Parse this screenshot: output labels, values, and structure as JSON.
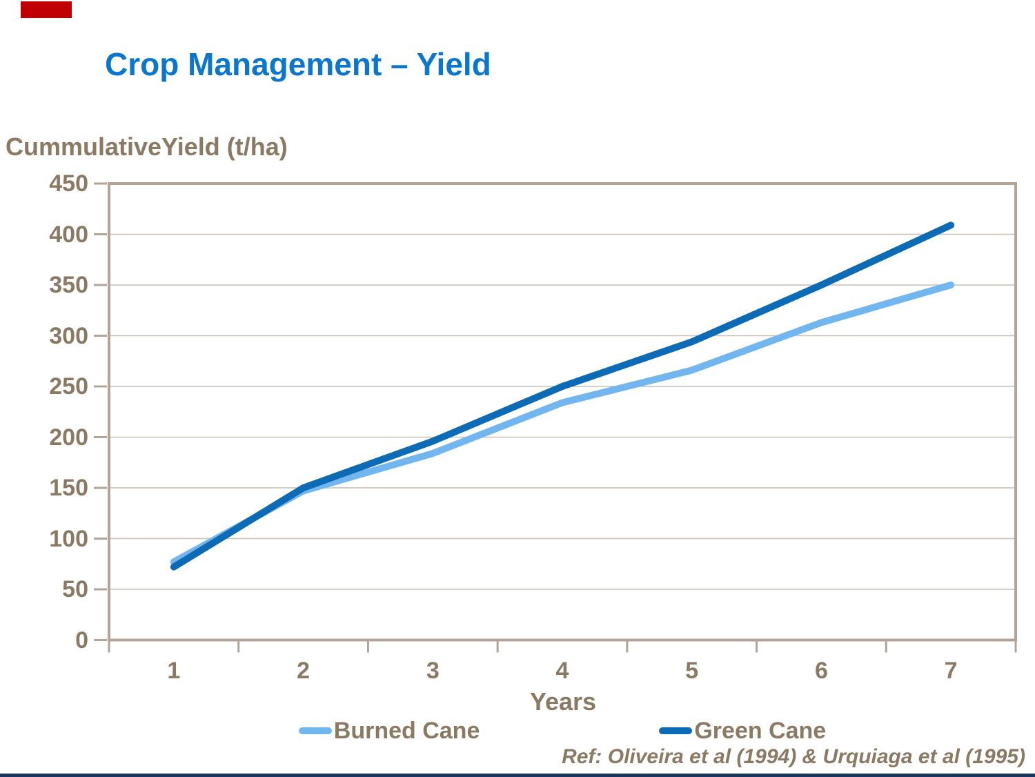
{
  "slide": {
    "title": "Crop Management – Yield",
    "ref_text": "Ref: Oliveira et al (1994) & Urquiaga et al (1995)",
    "accent_bar_color": "#C00000",
    "footer_bar_color": "#16365C"
  },
  "colors": {
    "title_blue": "#0B76CC",
    "axis_text_brown": "#8A7963",
    "plot_border": "#B2A597",
    "gridline": "#C9BFB2"
  },
  "chart_data": {
    "type": "line",
    "title": "",
    "y_axis_title": "CummulativeYield (t/ha)",
    "xlabel": "Years",
    "x": [
      1,
      2,
      3,
      4,
      5,
      6,
      7
    ],
    "series": [
      {
        "name": "Burned Cane",
        "color": "#72B6F0",
        "values": [
          77,
          147,
          184,
          234,
          266,
          313,
          350
        ]
      },
      {
        "name": "Green Cane",
        "color": "#0D6AB4",
        "values": [
          72,
          150,
          196,
          250,
          294,
          350,
          409
        ]
      }
    ],
    "ylim": [
      0,
      450
    ],
    "ytick_step": 50,
    "grid": "horizontal",
    "legend_position": "bottom"
  }
}
